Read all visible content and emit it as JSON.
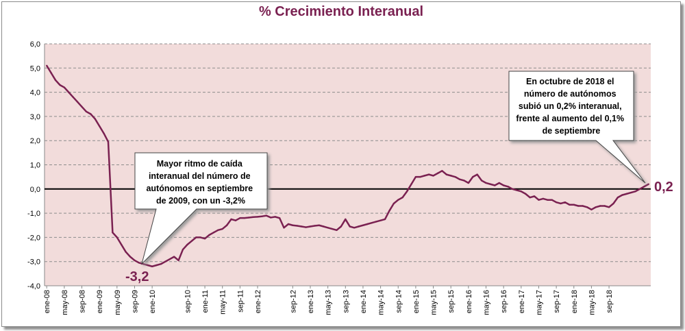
{
  "chart_data": {
    "type": "line",
    "title": "% Crecimiento Interanual",
    "ylim": [
      -4.0,
      6.0
    ],
    "ytick_step": 1.0,
    "y_tick_labels": [
      "-4,0",
      "-3,0",
      "-2,0",
      "-1,0",
      "0,0",
      "1,0",
      "2,0",
      "3,0",
      "4,0",
      "5,0",
      "6,0"
    ],
    "x_tick_labels": [
      "ene-08",
      "may-08",
      "sep-08",
      "ene-09",
      "may-09",
      "sep-09",
      "ene-10",
      "sep-10",
      "ene-11",
      "may-11",
      "sep-11",
      "ene-12",
      "sep-12",
      "ene-13",
      "may-13",
      "sep-13",
      "ene-14",
      "may-14",
      "sep-14",
      "ene-15",
      "may-15",
      "sep-15",
      "ene-16",
      "may-16",
      "sep-16",
      "ene-17",
      "may-17",
      "sep-17",
      "ene-18",
      "may-18",
      "sep-18"
    ],
    "grid": true,
    "plot_background": "#f2dcdb",
    "line_color": "#7a2151",
    "series": [
      {
        "start": "ene-08",
        "values": [
          5.1,
          4.8,
          4.5,
          4.3,
          4.2,
          4.0,
          3.8,
          3.6,
          3.4,
          3.2,
          3.1,
          2.9,
          2.6,
          2.3,
          1.95,
          -1.8,
          -2.0,
          -2.3,
          -2.6,
          -2.8,
          -2.95,
          -3.05,
          -3.1,
          -3.15,
          -3.2,
          -3.15,
          -3.1,
          -3.0,
          -2.9,
          -2.8,
          -2.95,
          -2.5,
          -2.3,
          -2.15,
          -2.0,
          -2.0,
          -2.05,
          -1.9,
          -1.8,
          -1.7,
          -1.65,
          -1.5,
          -1.25,
          -1.3,
          -1.2,
          -1.2,
          -1.18,
          -1.16,
          -1.15,
          -1.13,
          -1.1,
          -1.18,
          -1.15,
          -1.2,
          -1.6,
          -1.45,
          -1.5,
          -1.52,
          -1.55,
          -1.58,
          -1.55,
          -1.52,
          -1.5,
          -1.55,
          -1.6,
          -1.65,
          -1.7,
          -1.55,
          -1.25,
          -1.55,
          -1.6,
          -1.55,
          -1.5,
          -1.45,
          -1.4,
          -1.35,
          -1.3,
          -1.25,
          -0.9,
          -0.6,
          -0.45,
          -0.35,
          -0.1,
          0.2,
          0.5,
          0.5,
          0.55,
          0.6,
          0.55,
          0.65,
          0.75,
          0.6,
          0.55,
          0.5,
          0.4,
          0.35,
          0.25,
          0.5,
          0.6,
          0.35,
          0.25,
          0.2,
          0.15,
          0.25,
          0.15,
          0.1,
          0.0,
          -0.05,
          -0.1,
          -0.2,
          -0.35,
          -0.3,
          -0.45,
          -0.4,
          -0.45,
          -0.45,
          -0.55,
          -0.6,
          -0.55,
          -0.65,
          -0.65,
          -0.7,
          -0.7,
          -0.75,
          -0.85,
          -0.75,
          -0.7,
          -0.7,
          -0.75,
          -0.6,
          -0.35,
          -0.25,
          -0.2,
          -0.15,
          -0.1,
          0.0,
          0.1,
          0.2
        ]
      }
    ],
    "annotations": [
      {
        "text_lines": [
          "Mayor ritmo de caída",
          "interanual del número de",
          "autónomos en septiembre",
          "de 2009, con un -3,2%"
        ],
        "label": "-3,2"
      },
      {
        "text_lines": [
          "En octubre de 2018 el",
          "número de autónomos",
          "subió un 0,2% interanual,",
          "frente al aumento del 0,1%",
          "de septiembre"
        ],
        "label": "0,2"
      }
    ]
  }
}
